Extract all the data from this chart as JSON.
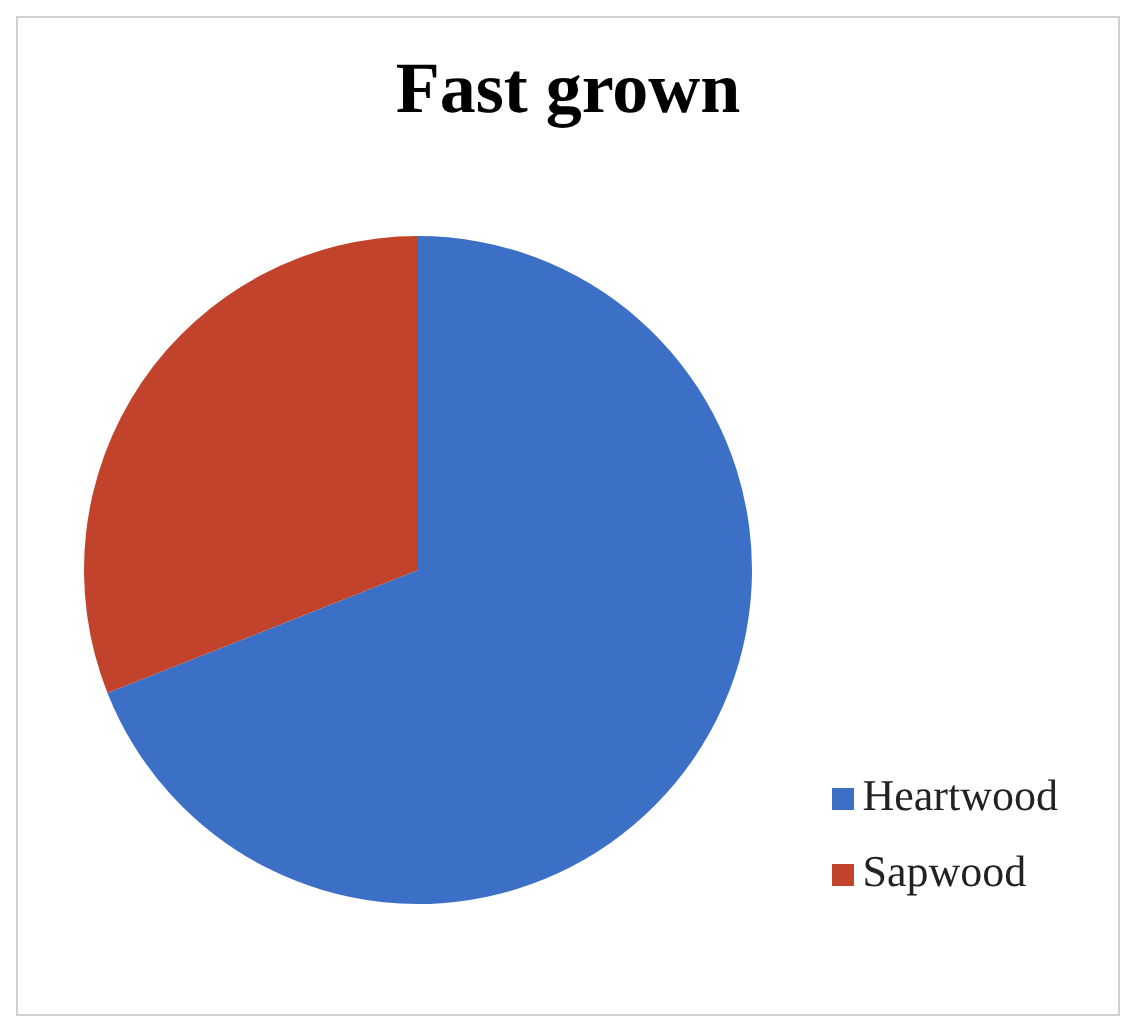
{
  "chart_data": {
    "type": "pie",
    "title": "Fast grown",
    "categories": [
      "Heartwood",
      "Sapwood"
    ],
    "values": [
      69,
      31
    ],
    "colors": [
      "#3b70c6",
      "#c2432c"
    ],
    "legend": "bottom right"
  }
}
